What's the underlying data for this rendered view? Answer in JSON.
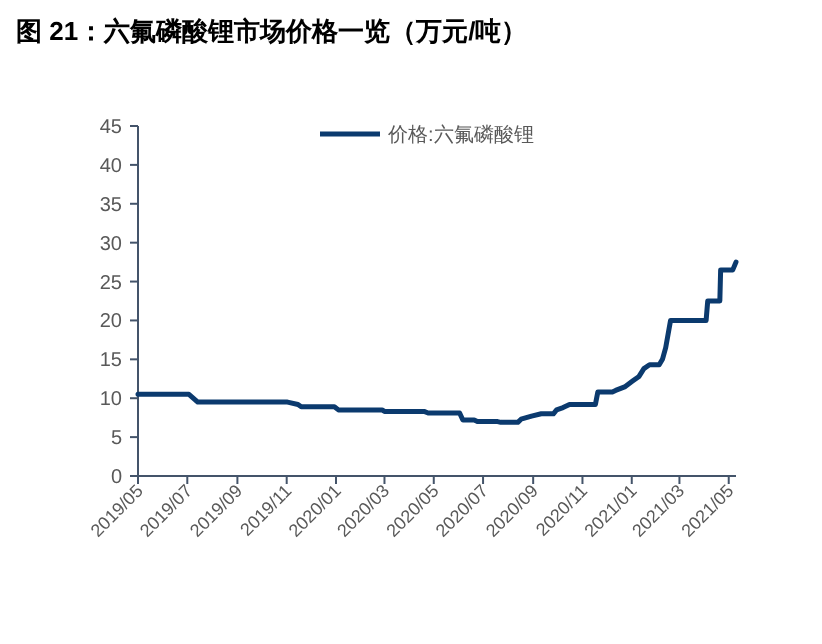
{
  "chart_data": {
    "type": "line",
    "title": "图 21：六氟磷酸锂市场价格一览（万元/吨）",
    "legend": "top",
    "xlim": [
      "2019-05-01",
      "2021-05-10"
    ],
    "xticks": [
      {
        "value": "2019-05-01",
        "label": "2019/05"
      },
      {
        "value": "2019-07-01",
        "label": "2019/07"
      },
      {
        "value": "2019-09-01",
        "label": "2019/09"
      },
      {
        "value": "2019-11-01",
        "label": "2019/11"
      },
      {
        "value": "2020-01-01",
        "label": "2020/01"
      },
      {
        "value": "2020-03-01",
        "label": "2020/03"
      },
      {
        "value": "2020-05-01",
        "label": "2020/05"
      },
      {
        "value": "2020-07-01",
        "label": "2020/07"
      },
      {
        "value": "2020-09-01",
        "label": "2020/09"
      },
      {
        "value": "2020-11-01",
        "label": "2020/11"
      },
      {
        "value": "2021-01-01",
        "label": "2021/01"
      },
      {
        "value": "2021-03-01",
        "label": "2021/03"
      },
      {
        "value": "2021-05-01",
        "label": "2021/05"
      }
    ],
    "ylim": [
      0,
      45
    ],
    "yticks": [
      0,
      5,
      10,
      15,
      20,
      25,
      30,
      35,
      40,
      45
    ],
    "series": [
      {
        "name": "价格:六氟磷酸锂",
        "color": "#0b3a6e",
        "x": [
          "2019-05-01",
          "2019-07-03",
          "2019-07-14",
          "2019-11-02",
          "2019-11-15",
          "2019-11-19",
          "2019-12-30",
          "2020-01-04",
          "2020-02-27",
          "2020-03-01",
          "2020-04-19",
          "2020-04-24",
          "2020-06-02",
          "2020-06-06",
          "2020-06-20",
          "2020-06-24",
          "2020-07-19",
          "2020-07-23",
          "2020-08-13",
          "2020-08-17",
          "2020-08-30",
          "2020-09-11",
          "2020-09-26",
          "2020-09-30",
          "2020-10-08",
          "2020-10-16",
          "2020-11-17",
          "2020-11-20",
          "2020-12-08",
          "2020-12-12",
          "2020-12-24",
          "2021-01-02",
          "2021-01-10",
          "2021-01-16",
          "2021-01-23",
          "2021-02-04",
          "2021-02-08",
          "2021-02-12",
          "2021-02-18",
          "2021-04-03",
          "2021-04-05",
          "2021-04-20",
          "2021-04-21",
          "2021-05-06",
          "2021-05-10"
        ],
        "values": [
          10.5,
          10.5,
          9.5,
          9.5,
          9.2,
          8.9,
          8.9,
          8.5,
          8.5,
          8.3,
          8.3,
          8.1,
          8.1,
          7.2,
          7.2,
          7.0,
          7.0,
          6.9,
          6.9,
          7.3,
          7.7,
          8.0,
          8.0,
          8.5,
          8.8,
          9.2,
          9.2,
          10.8,
          10.8,
          11.0,
          11.5,
          12.2,
          12.8,
          13.8,
          14.3,
          14.3,
          15.0,
          16.5,
          20.0,
          20.0,
          22.5,
          22.5,
          26.5,
          26.5,
          27.5
        ]
      }
    ]
  }
}
